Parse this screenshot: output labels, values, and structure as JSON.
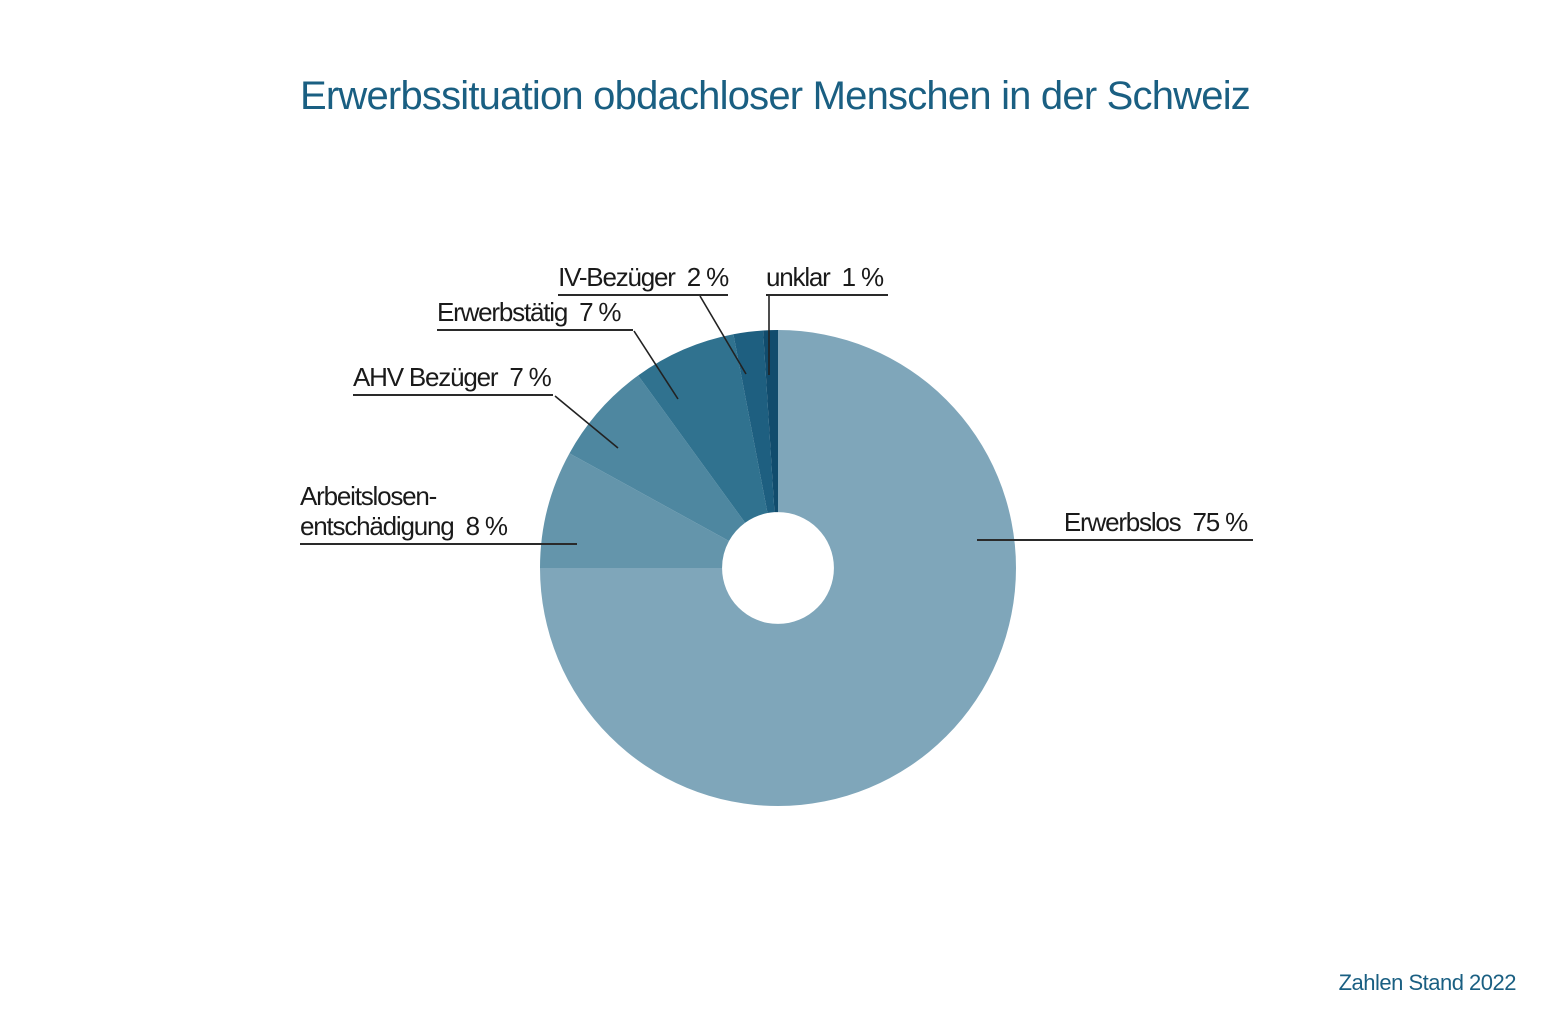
{
  "page": {
    "background_color": "#FFFFFF"
  },
  "header": {
    "title": "Erwerbssituation obdachloser Menschen in der Schweiz",
    "title_color": "#1A5F82"
  },
  "footer": {
    "note": "Zahlen Stand 2022",
    "note_color": "#1A5F82"
  },
  "chart_data": {
    "type": "pie",
    "subtype": "donut",
    "title": "Erwerbssituation obdachloser Menschen in der Schweiz",
    "annotation": "Zahlen Stand 2022",
    "unit": "%",
    "start_angle_deg": 0,
    "direction": "clockwise",
    "hole_ratio": 0.235,
    "legend_position": "callout-labels",
    "slices": [
      {
        "label": "Erwerbslos",
        "value": 75,
        "color": "#7FA6BA",
        "display": "Erwerbslos  75 %"
      },
      {
        "label": "Arbeitslosenentschädigung",
        "value": 8,
        "color": "#6495AB",
        "display_line1": "Arbeitslosen-",
        "display_line2": "entschädigung  8 %"
      },
      {
        "label": "AHV Bezüger",
        "value": 7,
        "color": "#4E87A0",
        "display": "AHV Bezüger  7 %"
      },
      {
        "label": "Erwerbstätig",
        "value": 7,
        "color": "#30728F",
        "display": "Erwerbstätig  7 %"
      },
      {
        "label": "IV-Bezüger",
        "value": 2,
        "color": "#1E5F80",
        "display": "IV-Bezüger  2 %"
      },
      {
        "label": "unklar",
        "value": 1,
        "color": "#114C6D",
        "display": "unklar  1 %"
      }
    ]
  }
}
